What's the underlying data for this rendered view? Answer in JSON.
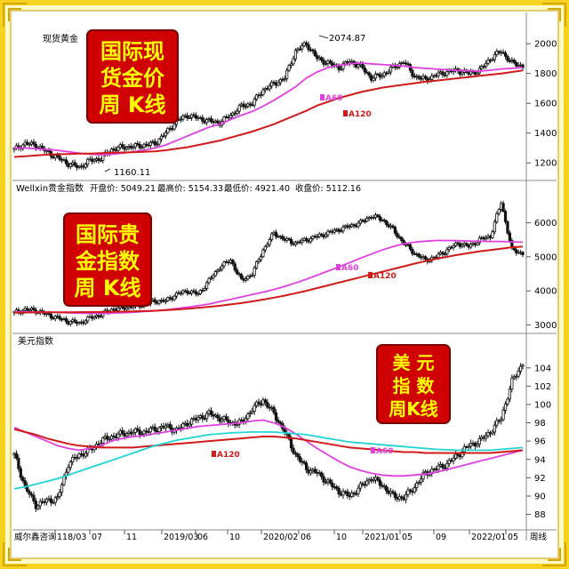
{
  "colors": {
    "frame_gold": "#e6c200",
    "frame_light": "#fff3a8",
    "ma60": "#e040e0",
    "ma120": "#d11a1a",
    "usd_ma60": "#22d3d3",
    "candle": "#111111",
    "badge_bg": "#d10000",
    "badge_text": "#ffff00"
  },
  "badges": [
    {
      "lines": [
        "国际现",
        "货金价",
        "周  K线"
      ]
    },
    {
      "lines": [
        "国际贵",
        "金指数",
        "周  K线"
      ]
    },
    {
      "lines": [
        "美  元",
        "指  数",
        "周K线"
      ]
    }
  ],
  "x_axis": {
    "labels": [
      "威尔鑫咨询",
      "118/03",
      "07",
      "11",
      "2019/03",
      "06",
      "10",
      "2020/02",
      "06",
      "10",
      "2021/01",
      "05",
      "09",
      "2022/01",
      "05",
      "周线"
    ]
  },
  "chart_data": [
    {
      "type": "line",
      "title": "现货黄金",
      "ylim": [
        1100,
        2150
      ],
      "y_ticks": [
        1200,
        1400,
        1600,
        1800,
        2000
      ],
      "annotations": {
        "high": "2074.87",
        "low": "1160.11",
        "ma60": "A60",
        "ma120": "A120"
      },
      "series": [
        {
          "name": "price",
          "values": [
            1290,
            1330,
            1320,
            1275,
            1235,
            1195,
            1170,
            1215,
            1230,
            1290,
            1305,
            1310,
            1320,
            1330,
            1400,
            1480,
            1520,
            1500,
            1480,
            1470,
            1520,
            1580,
            1600,
            1690,
            1730,
            1770,
            1950,
            2000,
            1900,
            1870,
            1840,
            1880,
            1850,
            1770,
            1790,
            1840,
            1880,
            1780,
            1760,
            1790,
            1810,
            1820,
            1800,
            1820,
            1900,
            1950,
            1870,
            1850
          ]
        },
        {
          "name": "MA60",
          "values": [
            1300,
            1300,
            1295,
            1290,
            1285,
            1275,
            1265,
            1258,
            1255,
            1258,
            1265,
            1275,
            1285,
            1300,
            1320,
            1350,
            1380,
            1410,
            1440,
            1460,
            1490,
            1520,
            1545,
            1580,
            1620,
            1665,
            1710,
            1770,
            1810,
            1840,
            1855,
            1865,
            1870,
            1865,
            1860,
            1855,
            1850,
            1840,
            1835,
            1830,
            1825,
            1820,
            1818,
            1815,
            1822,
            1830,
            1835,
            1840
          ]
        },
        {
          "name": "MA120",
          "values": [
            1240,
            1245,
            1250,
            1255,
            1258,
            1260,
            1262,
            1263,
            1265,
            1268,
            1270,
            1272,
            1275,
            1278,
            1285,
            1295,
            1305,
            1320,
            1335,
            1350,
            1370,
            1390,
            1410,
            1435,
            1460,
            1490,
            1520,
            1550,
            1585,
            1610,
            1635,
            1655,
            1675,
            1690,
            1705,
            1715,
            1725,
            1735,
            1745,
            1752,
            1760,
            1768,
            1776,
            1784,
            1792,
            1800,
            1810,
            1820
          ]
        }
      ]
    },
    {
      "type": "line",
      "title": "Wellxin贵金指数",
      "info": {
        "open": "开盘价: 5049.21",
        "high": "最高价: 5154.33",
        "low": "最低价: 4921.40",
        "close": "收盘价: 5112.16"
      },
      "ylim": [
        2800,
        6800
      ],
      "y_ticks": [
        3000,
        4000,
        5000,
        6000
      ],
      "annotations": {
        "ma60": "A60",
        "ma120": "A120"
      },
      "series": [
        {
          "name": "price",
          "values": [
            3350,
            3450,
            3420,
            3300,
            3200,
            3100,
            3050,
            3200,
            3300,
            3450,
            3500,
            3550,
            3600,
            3700,
            3700,
            3900,
            4000,
            3900,
            4300,
            4700,
            4900,
            4300,
            4500,
            5200,
            5700,
            5500,
            5400,
            5500,
            5600,
            5700,
            5800,
            5900,
            6000,
            6200,
            6100,
            5800,
            5400,
            5100,
            4900,
            5000,
            5200,
            5400,
            5300,
            5500,
            5600,
            6600,
            5200,
            5100
          ]
        },
        {
          "name": "MA60",
          "values": [
            3380,
            3380,
            3375,
            3370,
            3365,
            3355,
            3345,
            3340,
            3340,
            3345,
            3355,
            3370,
            3390,
            3410,
            3440,
            3480,
            3520,
            3560,
            3610,
            3680,
            3750,
            3820,
            3890,
            3960,
            4040,
            4130,
            4230,
            4340,
            4460,
            4580,
            4700,
            4830,
            4960,
            5080,
            5200,
            5300,
            5380,
            5430,
            5460,
            5480,
            5480,
            5475,
            5465,
            5455,
            5450,
            5450,
            5440,
            5430
          ]
        },
        {
          "name": "MA120",
          "values": [
            3360,
            3362,
            3365,
            3368,
            3370,
            3370,
            3372,
            3375,
            3378,
            3382,
            3388,
            3395,
            3405,
            3415,
            3430,
            3450,
            3475,
            3500,
            3530,
            3560,
            3600,
            3640,
            3690,
            3740,
            3800,
            3860,
            3930,
            4000,
            4080,
            4160,
            4240,
            4320,
            4400,
            4480,
            4560,
            4640,
            4720,
            4800,
            4870,
            4940,
            5000,
            5060,
            5110,
            5160,
            5200,
            5240,
            5280,
            5300
          ]
        }
      ]
    },
    {
      "type": "line",
      "title": "美元指数",
      "ylim": [
        86.5,
        106.5
      ],
      "y_ticks": [
        88,
        90,
        92,
        94,
        96,
        98,
        100,
        102,
        104
      ],
      "annotations": {
        "ma60": "A60",
        "ma120": "A120"
      },
      "series": [
        {
          "name": "price",
          "values": [
            94.5,
            91.0,
            89.0,
            89.5,
            89.7,
            93.5,
            94.5,
            95.0,
            96.0,
            96.5,
            96.8,
            97.0,
            97.0,
            97.3,
            97.6,
            97.2,
            98.0,
            98.5,
            99.0,
            98.5,
            98.0,
            98.0,
            99.5,
            100.5,
            99.0,
            97.0,
            94.5,
            93.0,
            92.5,
            91.5,
            90.5,
            90.0,
            91.0,
            92.0,
            91.2,
            90.0,
            89.8,
            91.0,
            92.5,
            93.0,
            93.5,
            94.5,
            95.5,
            96.0,
            97.0,
            98.5,
            102.5,
            104.5
          ]
        },
        {
          "name": "MA60",
          "values": [
            97.5,
            97.0,
            96.5,
            96.0,
            95.5,
            95.2,
            95.0,
            95.2,
            95.5,
            96.0,
            96.3,
            96.5,
            96.6,
            96.8,
            97.0,
            97.2,
            97.4,
            97.6,
            97.7,
            97.8,
            97.9,
            98.0,
            98.2,
            98.3,
            98.0,
            97.5,
            96.8,
            96.0,
            95.2,
            94.5,
            93.8,
            93.2,
            92.8,
            92.5,
            92.3,
            92.2,
            92.2,
            92.3,
            92.4,
            92.6,
            92.9,
            93.2,
            93.5,
            93.8,
            94.1,
            94.4,
            94.7,
            95.0
          ]
        },
        {
          "name": "MA120",
          "values": [
            97.3,
            97.0,
            96.7,
            96.3,
            96.0,
            95.7,
            95.5,
            95.4,
            95.3,
            95.3,
            95.3,
            95.3,
            95.4,
            95.5,
            95.6,
            95.7,
            95.8,
            95.9,
            96.0,
            96.1,
            96.2,
            96.3,
            96.4,
            96.5,
            96.5,
            96.4,
            96.3,
            96.1,
            95.9,
            95.7,
            95.5,
            95.3,
            95.2,
            95.1,
            95.0,
            94.9,
            94.8,
            94.8,
            94.7,
            94.7,
            94.7,
            94.7,
            94.7,
            94.7,
            94.7,
            94.8,
            94.9,
            95.0
          ]
        },
        {
          "name": "MA250",
          "values": [
            90.8,
            91.0,
            91.3,
            91.6,
            91.9,
            92.3,
            92.7,
            93.1,
            93.5,
            93.9,
            94.3,
            94.7,
            95.1,
            95.5,
            95.8,
            96.1,
            96.3,
            96.5,
            96.7,
            96.8,
            96.9,
            96.95,
            97.0,
            97.0,
            97.0,
            96.9,
            96.8,
            96.7,
            96.5,
            96.3,
            96.1,
            95.9,
            95.8,
            95.7,
            95.6,
            95.5,
            95.4,
            95.3,
            95.2,
            95.1,
            95.05,
            95.0,
            95.0,
            95.0,
            95.0,
            95.1,
            95.2,
            95.3
          ]
        }
      ]
    }
  ]
}
